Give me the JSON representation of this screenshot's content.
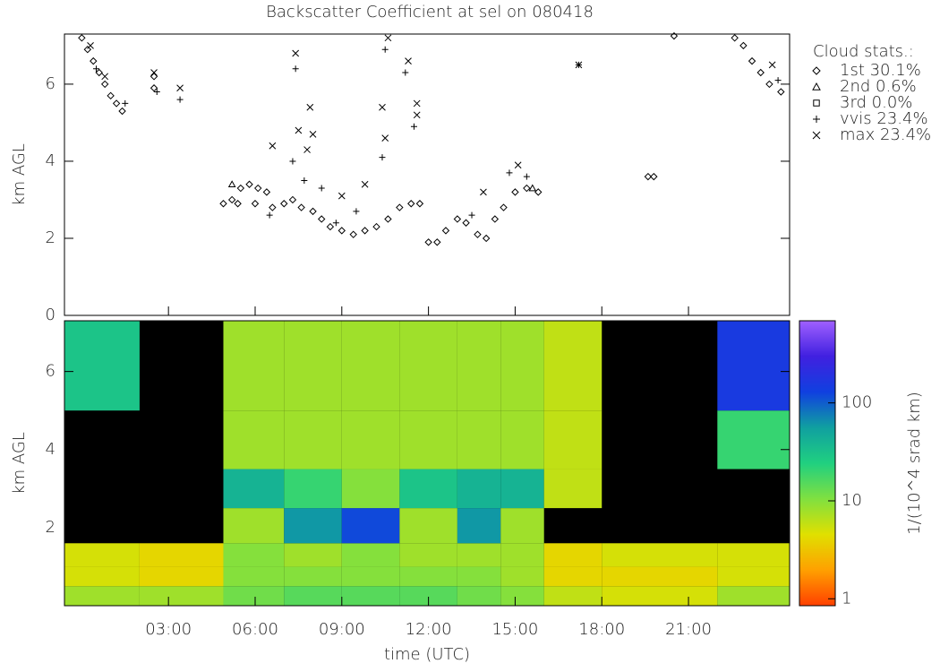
{
  "chart_data": [
    {
      "type": "scatter",
      "title": "Backscatter Coefficient at sel on 080418",
      "ylabel": "km AGL",
      "legend_title": "Cloud stats.:",
      "xlim": [
        -0.6,
        24.5
      ],
      "ylim": [
        0,
        7.3
      ],
      "yticks": [
        0,
        2,
        4,
        6
      ],
      "series": [
        {
          "name": "1st 30.1%",
          "marker": "diamond",
          "color": "#000000",
          "x": [
            0.0,
            0.2,
            0.4,
            0.6,
            0.8,
            1.0,
            1.2,
            1.4,
            2.5,
            2.5,
            4.9,
            5.2,
            5.5,
            5.8,
            6.1,
            6.4,
            5.4,
            6.0,
            6.6,
            7.0,
            7.3,
            7.6,
            8.0,
            8.3,
            8.6,
            9.0,
            9.4,
            9.8,
            10.2,
            10.6,
            11.0,
            11.4,
            11.7,
            12.0,
            12.3,
            12.6,
            13.0,
            13.3,
            13.7,
            14.0,
            14.3,
            14.6,
            15.0,
            15.4,
            15.8,
            19.6,
            19.8,
            20.5,
            22.6,
            22.9,
            23.2,
            23.5,
            23.8,
            24.2
          ],
          "values": [
            7.2,
            6.9,
            6.6,
            6.3,
            6.0,
            5.7,
            5.5,
            5.3,
            6.2,
            5.9,
            2.9,
            3.0,
            3.3,
            3.4,
            3.3,
            3.2,
            2.9,
            2.9,
            2.8,
            2.9,
            3.0,
            2.8,
            2.7,
            2.5,
            2.3,
            2.2,
            2.1,
            2.2,
            2.3,
            2.5,
            2.8,
            2.9,
            2.9,
            1.9,
            1.9,
            2.2,
            2.5,
            2.4,
            2.1,
            2.0,
            2.5,
            2.8,
            3.2,
            3.3,
            3.2,
            3.6,
            3.6,
            7.25,
            7.2,
            7.0,
            6.6,
            6.3,
            6.0,
            5.8
          ]
        },
        {
          "name": "2nd  0.6%",
          "marker": "triangle",
          "color": "#000000",
          "x": [
            5.2,
            15.6
          ],
          "values": [
            3.4,
            3.3
          ]
        },
        {
          "name": "3rd  0.0%",
          "marker": "square",
          "color": "#000000",
          "x": [],
          "values": []
        },
        {
          "name": "vvis 23.4%",
          "marker": "plus",
          "color": "#000000",
          "x": [
            0.5,
            1.5,
            2.6,
            3.4,
            7.4,
            7.3,
            7.7,
            8.3,
            9.5,
            10.5,
            10.4,
            11.2,
            11.5,
            14.8,
            15.4,
            17.2,
            24.1,
            6.5,
            8.8,
            13.5
          ],
          "values": [
            6.4,
            5.5,
            5.8,
            5.6,
            6.4,
            4.0,
            3.5,
            3.3,
            2.7,
            6.9,
            4.1,
            6.3,
            4.9,
            3.7,
            3.6,
            6.5,
            6.1,
            2.6,
            2.4,
            2.6
          ]
        },
        {
          "name": "max 23.4%",
          "marker": "cross",
          "color": "#000000",
          "x": [
            0.3,
            0.8,
            2.5,
            3.4,
            7.4,
            7.5,
            7.9,
            8.0,
            7.8,
            9.0,
            10.4,
            10.6,
            11.3,
            11.6,
            11.6,
            10.5,
            13.9,
            15.1,
            17.2,
            23.9,
            6.6,
            9.8
          ],
          "values": [
            7.0,
            6.2,
            6.3,
            5.9,
            6.8,
            4.8,
            5.4,
            4.7,
            4.3,
            3.1,
            5.4,
            7.2,
            6.6,
            5.5,
            5.2,
            4.6,
            3.2,
            3.9,
            6.5,
            6.5,
            4.4,
            3.4
          ]
        }
      ]
    },
    {
      "type": "heatmap",
      "xlabel": "time (UTC)",
      "ylabel": "km AGL",
      "xlim": [
        -0.6,
        24.5
      ],
      "ylim": [
        0,
        7.3
      ],
      "yticks": [
        2,
        4,
        6
      ],
      "xticks": [
        {
          "value": 3,
          "label": "03:00"
        },
        {
          "value": 6,
          "label": "06:00"
        },
        {
          "value": 9,
          "label": "09:00"
        },
        {
          "value": 12,
          "label": "12:00"
        },
        {
          "value": 15,
          "label": "15:00"
        },
        {
          "value": 18,
          "label": "18:00"
        },
        {
          "value": 21,
          "label": "21:00"
        }
      ],
      "x_edges": [
        -0.6,
        2,
        4.9,
        7,
        9,
        11,
        13,
        14.5,
        16,
        18,
        22,
        24.5
      ],
      "y_edges": [
        0,
        0.5,
        1,
        1.6,
        2.5,
        3.5,
        5,
        7.3
      ],
      "values": [
        [
          8,
          8,
          12,
          15,
          15,
          15,
          12,
          10,
          6,
          5,
          8
        ],
        [
          5,
          4,
          10,
          10,
          10,
          10,
          10,
          8,
          4,
          4,
          5
        ],
        [
          5,
          4,
          10,
          8,
          10,
          8,
          8,
          8,
          4,
          5,
          5
        ],
        [
          null,
          null,
          8,
          60,
          120,
          8,
          60,
          8,
          null,
          null,
          null
        ],
        [
          null,
          null,
          40,
          20,
          10,
          30,
          40,
          40,
          6,
          null,
          null
        ],
        [
          null,
          null,
          8,
          8,
          8,
          8,
          8,
          8,
          6,
          null,
          20
        ],
        [
          30,
          null,
          8,
          8,
          8,
          8,
          8,
          8,
          6,
          null,
          150
        ]
      ],
      "colorbar": {
        "label": "1/(10^4 srad km)",
        "log": true,
        "clim": [
          0.85,
          690
        ],
        "ticks": [
          1,
          10,
          100
        ],
        "colors": [
          "#ff4000",
          "#ffa000",
          "#e0e000",
          "#80e040",
          "#20d080",
          "#10a0a0",
          "#1040e0",
          "#4020e0",
          "#a060ff"
        ]
      }
    }
  ]
}
